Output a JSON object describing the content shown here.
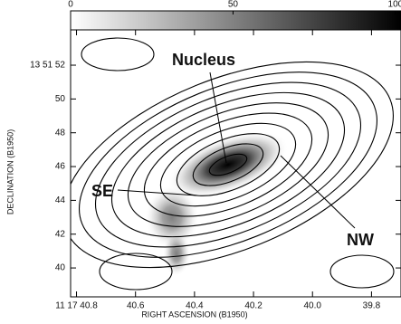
{
  "chart_data": {
    "type": "contour",
    "xlabel": "RIGHT ASCENSION (B1950)",
    "ylabel": "DECLINATION (B1950)",
    "xlim": [
      40.82,
      39.7
    ],
    "xticks": [
      {
        "value": 40.8,
        "label": "11 17 40.8"
      },
      40.6,
      40.4,
      40.2,
      {
        "value": 40,
        "label": "40.0"
      },
      39.8
    ],
    "ylim": [
      38.29,
      54.09
    ],
    "yticks": [
      {
        "value": 52,
        "label": "13 51 52"
      },
      50,
      48,
      46,
      44,
      42,
      40
    ],
    "colorbar_lim": [
      0,
      101.7
    ],
    "colorbar_ticks": [
      0,
      50,
      100
    ],
    "annotations": [
      "Nucleus",
      "SE",
      "NW"
    ]
  }
}
